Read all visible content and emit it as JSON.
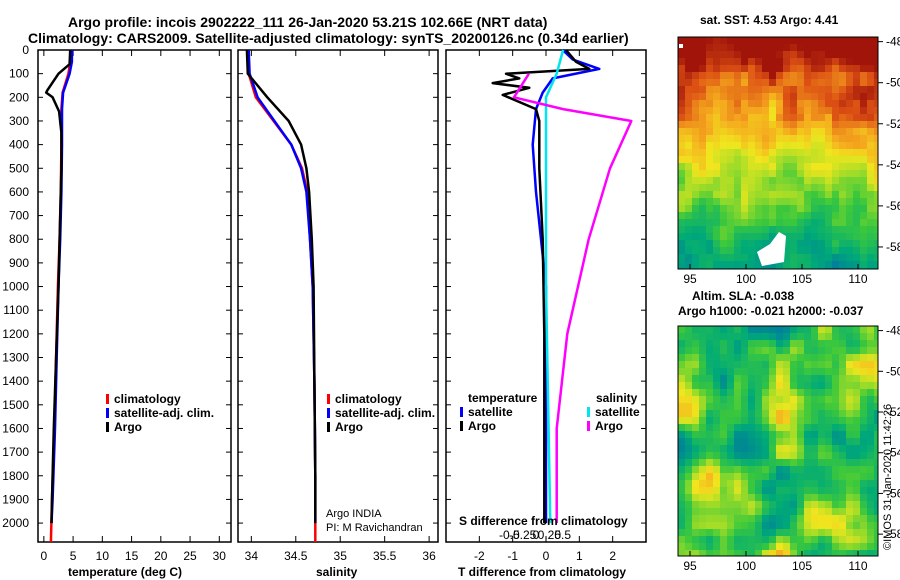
{
  "header": {
    "line1": "Argo profile: incois 2902222_111 26-Jan-2020 53.21S 102.66E (NRT data)",
    "line2": "Climatology: CARS2009. Satellite-adjusted climatology: synTS_20200126.nc (0.34d earlier)"
  },
  "credit": "©IMOS 31-Jan-2020 11:42:26",
  "colors": {
    "climatology": "#ff0000",
    "satellite": "#0000ff",
    "argo": "#000000",
    "sat_salinity": "#00e5ee",
    "argo_salinity": "#ff00ff"
  },
  "chart_data": [
    {
      "id": "temperature",
      "type": "line",
      "xlabel": "temperature (deg C)",
      "ylabel": "",
      "xlim": [
        -1,
        32
      ],
      "ylim": [
        2080,
        0
      ],
      "xticks": [
        0,
        5,
        10,
        15,
        20,
        25,
        30
      ],
      "yticks": [
        0,
        100,
        200,
        300,
        400,
        500,
        600,
        700,
        800,
        900,
        1000,
        1100,
        1200,
        1300,
        1400,
        1500,
        1600,
        1700,
        1800,
        1900,
        2000
      ],
      "legend": [
        "climatology",
        "satellite-adj. clim.",
        "Argo"
      ],
      "series": [
        {
          "name": "climatology",
          "color": "#ff0000",
          "points": [
            [
              4.6,
              0
            ],
            [
              4.5,
              50
            ],
            [
              4.2,
              100
            ],
            [
              3.2,
              180
            ],
            [
              3.0,
              250
            ],
            [
              3.0,
              400
            ],
            [
              2.9,
              600
            ],
            [
              2.7,
              800
            ],
            [
              2.4,
              1000
            ],
            [
              2.1,
              1300
            ],
            [
              1.8,
              1600
            ],
            [
              1.4,
              1900
            ],
            [
              1.2,
              2080
            ]
          ]
        },
        {
          "name": "satellite-adj. clim.",
          "color": "#0000ff",
          "points": [
            [
              4.8,
              0
            ],
            [
              4.8,
              50
            ],
            [
              4.4,
              100
            ],
            [
              3.3,
              180
            ],
            [
              3.1,
              250
            ],
            [
              3.1,
              400
            ],
            [
              3.0,
              600
            ],
            [
              2.8,
              800
            ],
            [
              2.5,
              1000
            ],
            [
              2.2,
              1300
            ],
            [
              1.9,
              1600
            ],
            [
              1.5,
              1900
            ],
            [
              1.3,
              2000
            ]
          ]
        },
        {
          "name": "Argo",
          "color": "#000000",
          "points": [
            [
              4.5,
              0
            ],
            [
              4.4,
              60
            ],
            [
              2.5,
              100
            ],
            [
              0.6,
              170
            ],
            [
              0.4,
              180
            ],
            [
              1.5,
              200
            ],
            [
              2.6,
              260
            ],
            [
              3.0,
              350
            ],
            [
              3.0,
              500
            ],
            [
              2.8,
              700
            ],
            [
              2.5,
              1000
            ],
            [
              2.1,
              1300
            ],
            [
              1.7,
              1600
            ],
            [
              1.4,
              1900
            ],
            [
              1.3,
              2000
            ]
          ]
        }
      ]
    },
    {
      "id": "salinity",
      "type": "line",
      "xlabel": "salinity",
      "xlim": [
        33.85,
        36.1
      ],
      "ylim": [
        2080,
        0
      ],
      "xticks": [
        34,
        34.5,
        35,
        35.5,
        36
      ],
      "legend": [
        "climatology",
        "satellite-adj. clim.",
        "Argo"
      ],
      "annotation": [
        "Argo INDIA",
        "PI: M Ravichandran"
      ],
      "series": [
        {
          "name": "climatology",
          "color": "#ff0000",
          "points": [
            [
              33.96,
              0
            ],
            [
              33.97,
              100
            ],
            [
              34.05,
              200
            ],
            [
              34.25,
              300
            ],
            [
              34.45,
              400
            ],
            [
              34.57,
              500
            ],
            [
              34.63,
              600
            ],
            [
              34.66,
              800
            ],
            [
              34.69,
              1000
            ],
            [
              34.71,
              1400
            ],
            [
              34.72,
              1800
            ],
            [
              34.72,
              2080
            ]
          ]
        },
        {
          "name": "satellite-adj. clim.",
          "color": "#0000ff",
          "points": [
            [
              33.97,
              0
            ],
            [
              33.98,
              100
            ],
            [
              34.07,
              200
            ],
            [
              34.26,
              300
            ],
            [
              34.45,
              400
            ],
            [
              34.56,
              500
            ],
            [
              34.62,
              600
            ],
            [
              34.66,
              800
            ],
            [
              34.69,
              1000
            ],
            [
              34.71,
              1400
            ],
            [
              34.72,
              1800
            ],
            [
              34.72,
              2000
            ]
          ]
        },
        {
          "name": "Argo",
          "color": "#000000",
          "points": [
            [
              33.95,
              0
            ],
            [
              33.96,
              100
            ],
            [
              34.18,
              200
            ],
            [
              34.42,
              300
            ],
            [
              34.56,
              400
            ],
            [
              34.62,
              500
            ],
            [
              34.65,
              600
            ],
            [
              34.68,
              800
            ],
            [
              34.7,
              1000
            ],
            [
              34.71,
              1400
            ],
            [
              34.72,
              1800
            ],
            [
              34.72,
              2000
            ]
          ]
        }
      ]
    },
    {
      "id": "difference",
      "type": "line",
      "xlabel": "T difference from climatology",
      "xlabel_top": "S difference from climatology",
      "xlim": [
        -3,
        3
      ],
      "ylim": [
        2080,
        0
      ],
      "xticks": [
        -2,
        -1,
        0,
        1,
        2
      ],
      "xticks_S": [
        "-0.5",
        "-0.25",
        "0",
        "0.25",
        "0.5"
      ],
      "legend_temperature": {
        "title": "temperature",
        "items": [
          "satellite",
          "Argo"
        ]
      },
      "legend_salinity": {
        "title": "salinity",
        "items": [
          "satellite",
          "Argo"
        ]
      },
      "series": [
        {
          "name": "T satellite",
          "color": "#0000ff",
          "points": [
            [
              0.5,
              0
            ],
            [
              0.8,
              40
            ],
            [
              1.6,
              80
            ],
            [
              0.2,
              120
            ],
            [
              -0.1,
              180
            ],
            [
              -0.3,
              250
            ],
            [
              -0.4,
              400
            ],
            [
              -0.3,
              600
            ],
            [
              -0.15,
              800
            ],
            [
              0,
              1000
            ],
            [
              0,
              2000
            ]
          ]
        },
        {
          "name": "T Argo",
          "color": "#000000",
          "points": [
            [
              0.6,
              0
            ],
            [
              0.9,
              50
            ],
            [
              1.3,
              80
            ],
            [
              -1.2,
              100
            ],
            [
              -0.8,
              120
            ],
            [
              -1.6,
              140
            ],
            [
              -0.5,
              160
            ],
            [
              -1.3,
              190
            ],
            [
              -0.3,
              250
            ],
            [
              -0.2,
              300
            ],
            [
              -0.2,
              500
            ],
            [
              -0.1,
              800
            ],
            [
              -0.05,
              1200
            ],
            [
              -0.05,
              2000
            ]
          ]
        },
        {
          "name": "S satellite",
          "color": "#00e5ee",
          "points": [
            [
              0.08,
              0
            ],
            [
              0.05,
              100
            ],
            [
              0.0,
              200
            ],
            [
              0.0,
              400
            ],
            [
              0.0,
              1000
            ],
            [
              0.02,
              2000
            ]
          ]
        },
        {
          "name": "S Argo",
          "color": "#ff00ff",
          "points": [
            [
              -0.08,
              100
            ],
            [
              -0.15,
              200
            ],
            [
              0.08,
              250
            ],
            [
              0.4,
              300
            ],
            [
              0.3,
              500
            ],
            [
              0.2,
              800
            ],
            [
              0.1,
              1200
            ],
            [
              0.05,
              1600
            ],
            [
              0.05,
              2000
            ]
          ]
        }
      ]
    },
    {
      "id": "sst_map",
      "type": "heatmap",
      "title": "sat. SST: 4.53 Argo: 4.41",
      "xticks": [
        "95",
        "100",
        "105",
        "110"
      ],
      "yticks": [
        "-48",
        "-50",
        "-52",
        "-54",
        "-56",
        "-58"
      ]
    },
    {
      "id": "sla_map",
      "type": "heatmap",
      "title1": "Altim. SLA: -0.038",
      "title2": "Argo h1000: -0.021 h2000: -0.037",
      "xticks": [
        "95",
        "100",
        "105",
        "110"
      ],
      "yticks": [
        "-48",
        "-50",
        "-52",
        "-54",
        "-56",
        "-58"
      ]
    }
  ]
}
